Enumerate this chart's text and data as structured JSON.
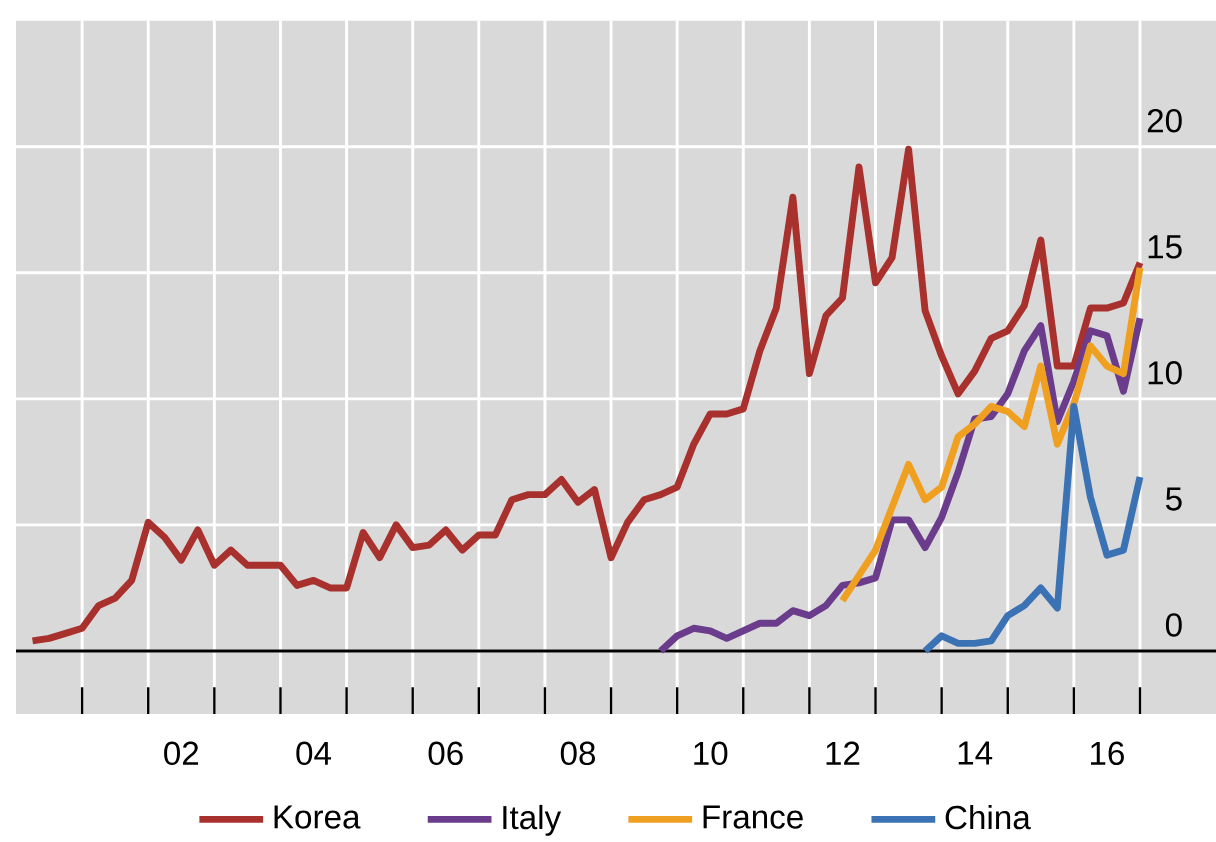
{
  "chart_data": {
    "type": "line",
    "xlim": [
      -0.5,
      17.65
    ],
    "ylim": [
      -2.5,
      25
    ],
    "xticks": [
      {
        "value": 0.5,
        "label": null
      },
      {
        "value": 1.5,
        "label": null
      },
      {
        "value": 2.5,
        "label": null
      },
      {
        "value": 3.5,
        "label": null
      },
      {
        "value": 4.5,
        "label": null
      },
      {
        "value": 5.5,
        "label": null
      },
      {
        "value": 6.5,
        "label": null
      },
      {
        "value": 7.5,
        "label": null
      },
      {
        "value": 8.5,
        "label": null
      },
      {
        "value": 9.5,
        "label": null
      },
      {
        "value": 10.5,
        "label": null
      },
      {
        "value": 11.5,
        "label": null
      },
      {
        "value": 12.5,
        "label": null
      },
      {
        "value": 13.5,
        "label": null
      },
      {
        "value": 14.5,
        "label": null
      },
      {
        "value": 15.5,
        "label": null
      },
      {
        "value": 16.5,
        "label": null
      },
      {
        "value": 2,
        "label": "02"
      },
      {
        "value": 4,
        "label": "04"
      },
      {
        "value": 6,
        "label": "06"
      },
      {
        "value": 8,
        "label": "08"
      },
      {
        "value": 10,
        "label": "10"
      },
      {
        "value": 12,
        "label": "12"
      },
      {
        "value": 14,
        "label": "14"
      },
      {
        "value": 16,
        "label": "16"
      }
    ],
    "yticks": [
      0,
      5,
      10,
      15,
      20
    ],
    "grid": true,
    "legend": "bottom",
    "marker": "none",
    "line_style": "solid",
    "ref_lines": [
      {
        "axis": "y",
        "value": 0,
        "color": "#000000"
      }
    ],
    "series": [
      {
        "name": "Korea",
        "color": "#a8302d",
        "x": [
          -0.25,
          0,
          0.25,
          0.5,
          0.75,
          1,
          1.25,
          1.5,
          1.75,
          2,
          2.25,
          2.5,
          2.75,
          3,
          3.25,
          3.5,
          3.75,
          4,
          4.25,
          4.5,
          4.75,
          5,
          5.25,
          5.5,
          5.75,
          6,
          6.25,
          6.5,
          6.75,
          7,
          7.25,
          7.5,
          7.75,
          8,
          8.25,
          8.5,
          8.75,
          9,
          9.25,
          9.5,
          9.75,
          10,
          10.25,
          10.5,
          10.75,
          11,
          11.25,
          11.5,
          11.75,
          12,
          12.25,
          12.5,
          12.75,
          13,
          13.25,
          13.5,
          13.75,
          14,
          14.25,
          14.5,
          14.75,
          15,
          15.25,
          15.5,
          15.75,
          16,
          16.25,
          16.5
        ],
        "values": [
          0.4,
          0.5,
          0.7,
          0.9,
          1.8,
          2.1,
          2.8,
          5.1,
          4.5,
          3.6,
          4.8,
          3.4,
          4.0,
          3.4,
          3.4,
          3.4,
          2.6,
          2.8,
          2.5,
          2.5,
          4.7,
          3.7,
          5.0,
          4.1,
          4.2,
          4.8,
          4.0,
          4.6,
          4.6,
          6.0,
          6.2,
          6.2,
          6.8,
          5.9,
          6.4,
          3.7,
          5.1,
          6.0,
          6.2,
          6.5,
          8.2,
          9.4,
          9.4,
          9.6,
          11.9,
          13.6,
          18.0,
          11.0,
          13.3,
          14.0,
          19.2,
          14.6,
          15.6,
          19.9,
          13.5,
          11.7,
          10.2,
          11.1,
          12.4,
          12.7,
          13.7,
          16.3,
          11.3,
          11.3,
          13.6,
          13.6,
          13.8,
          15.4
        ]
      },
      {
        "name": "Italy",
        "color": "#6b3c8c",
        "x": [
          9.25,
          9.5,
          9.75,
          10,
          10.25,
          10.5,
          10.75,
          11,
          11.25,
          11.5,
          11.75,
          12,
          12.25,
          12.5,
          12.75,
          13,
          13.25,
          13.5,
          13.75,
          14,
          14.25,
          14.5,
          14.75,
          15,
          15.25,
          15.5,
          15.75,
          16,
          16.25,
          16.5
        ],
        "values": [
          0.0,
          0.6,
          0.9,
          0.8,
          0.5,
          0.8,
          1.1,
          1.1,
          1.6,
          1.4,
          1.8,
          2.6,
          2.7,
          2.9,
          5.2,
          5.2,
          4.1,
          5.3,
          7.1,
          9.2,
          9.3,
          10.2,
          11.9,
          12.9,
          9.1,
          10.7,
          12.7,
          12.5,
          10.3,
          13.2
        ]
      },
      {
        "name": "France",
        "color": "#f0a021",
        "x": [
          12,
          12.25,
          12.5,
          12.75,
          13,
          13.25,
          13.5,
          13.75,
          14,
          14.25,
          14.5,
          14.75,
          15,
          15.25,
          15.5,
          15.75,
          16,
          16.25,
          16.5
        ],
        "values": [
          2.0,
          3.0,
          4.0,
          5.7,
          7.4,
          6.0,
          6.5,
          8.5,
          9.0,
          9.7,
          9.5,
          8.9,
          11.3,
          8.2,
          9.8,
          12.1,
          11.3,
          11.0,
          15.2
        ]
      },
      {
        "name": "China",
        "color": "#3b72b4",
        "x": [
          13.25,
          13.5,
          13.75,
          14,
          14.25,
          14.5,
          14.75,
          15,
          15.25,
          15.5,
          15.75,
          16,
          16.25,
          16.5
        ],
        "values": [
          0.0,
          0.6,
          0.3,
          0.3,
          0.4,
          1.4,
          1.8,
          2.5,
          1.7,
          9.7,
          6.1,
          3.8,
          4.0,
          6.9
        ]
      }
    ]
  }
}
